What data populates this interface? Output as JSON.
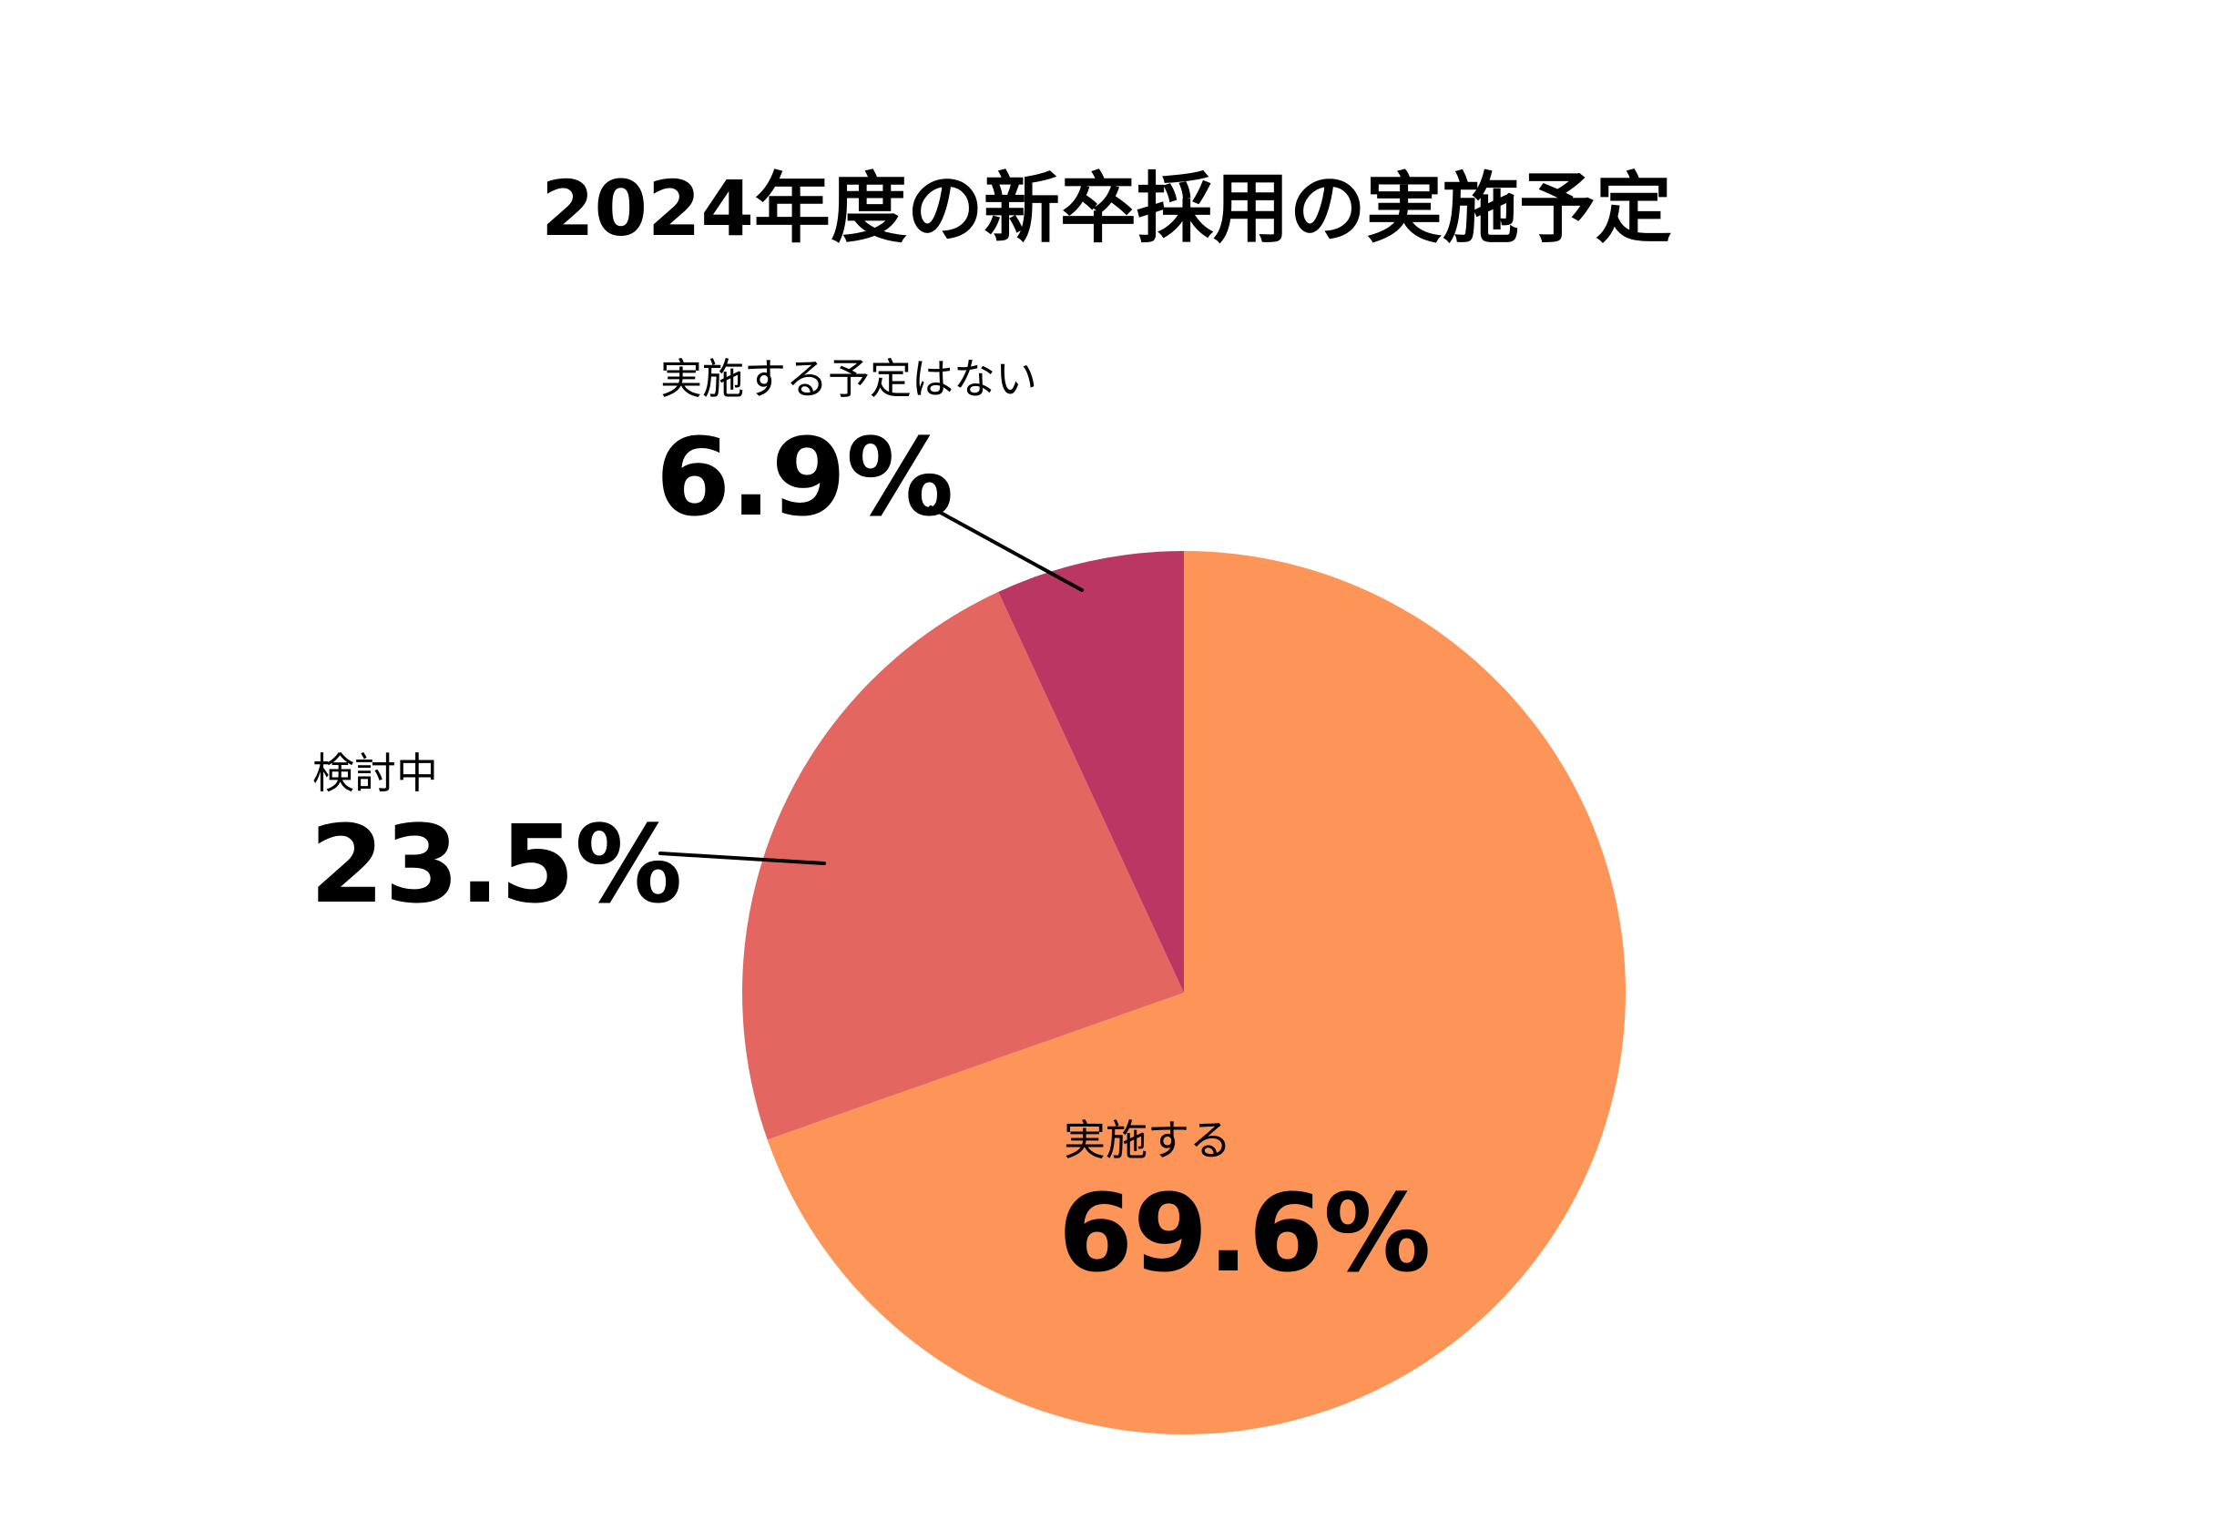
{
  "chart_data": {
    "type": "pie",
    "title": "2024年度の新卒採用の実施予定",
    "slices": [
      {
        "label": "実施する",
        "value": 69.6,
        "display": "69.6%",
        "color": "#FE9558"
      },
      {
        "label": "検討中",
        "value": 23.5,
        "display": "23.5%",
        "color": "#E46660"
      },
      {
        "label": "実施する予定はない",
        "value": 6.9,
        "display": "6.9%",
        "color": "#BB3763"
      }
    ],
    "start": "12 o'clock",
    "direction": "clockwise",
    "legend": "none"
  }
}
